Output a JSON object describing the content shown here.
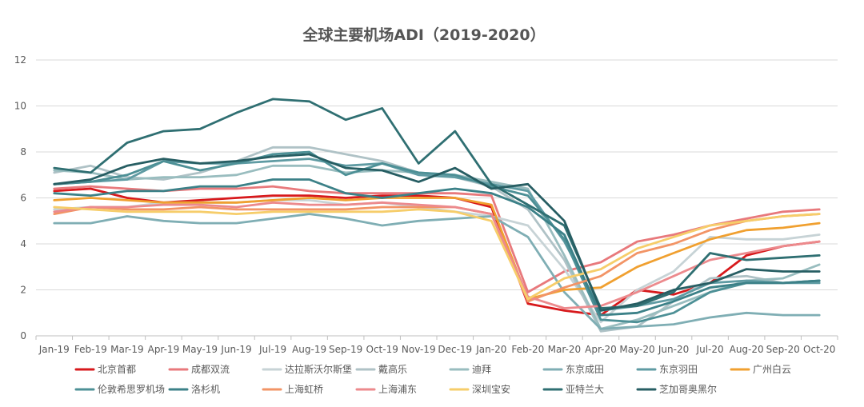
{
  "chart_data": {
    "type": "line",
    "title": "全球主要机场ADI（2019-2020）",
    "ylim": [
      0,
      12
    ],
    "yticks": [
      0,
      2,
      4,
      6,
      8,
      10,
      12
    ],
    "grid": "horizontal",
    "legend_position": "bottom",
    "categories": [
      "Jan-19",
      "Feb-19",
      "Mar-19",
      "Apr-19",
      "May-19",
      "Jun-19",
      "Jul-19",
      "Aug-19",
      "Sep-19",
      "Oct-19",
      "Nov-19",
      "Dec-19",
      "Jan-20",
      "Feb-20",
      "Mar-20",
      "Apr-20",
      "May-20",
      "Jun-20",
      "Jul-20",
      "Aug-20",
      "Sep-20",
      "Oct-20"
    ],
    "series": [
      {
        "name": "北京首都",
        "color": "#d7191c",
        "values": [
          6.3,
          6.4,
          6.0,
          5.8,
          5.9,
          6.0,
          6.1,
          6.1,
          6.0,
          6.1,
          6.1,
          6.0,
          5.6,
          1.4,
          1.1,
          0.9,
          2.0,
          1.8,
          2.3,
          3.5,
          3.9,
          4.1
        ]
      },
      {
        "name": "成都双流",
        "color": "#e8797c",
        "values": [
          6.4,
          6.5,
          6.4,
          6.3,
          6.4,
          6.4,
          6.5,
          6.3,
          6.2,
          6.2,
          6.2,
          6.2,
          6.1,
          1.9,
          2.8,
          3.2,
          4.1,
          4.4,
          4.8,
          5.1,
          5.4,
          5.5
        ]
      },
      {
        "name": "达拉斯沃尔斯堡",
        "color": "#c7d3d6",
        "values": [
          5.5,
          5.6,
          5.6,
          5.8,
          5.8,
          5.8,
          5.9,
          5.9,
          5.7,
          5.8,
          5.6,
          5.4,
          5.2,
          4.8,
          2.9,
          0.6,
          2.0,
          2.8,
          4.3,
          4.2,
          4.2,
          4.4
        ]
      },
      {
        "name": "戴高乐",
        "color": "#afc2c6",
        "values": [
          7.1,
          7.4,
          6.9,
          6.8,
          7.1,
          7.6,
          8.2,
          8.2,
          7.9,
          7.6,
          7.1,
          6.9,
          6.5,
          5.5,
          3.3,
          0.2,
          0.4,
          1.5,
          2.5,
          2.6,
          2.3,
          2.4
        ]
      },
      {
        "name": "迪拜",
        "color": "#99bdbf",
        "values": [
          7.2,
          7.1,
          6.8,
          6.9,
          6.9,
          7.0,
          7.4,
          7.4,
          7.1,
          7.2,
          7.1,
          7.0,
          6.7,
          6.4,
          3.5,
          0.3,
          0.7,
          1.3,
          1.9,
          2.4,
          2.5,
          3.1
        ]
      },
      {
        "name": "东京成田",
        "color": "#7faeb4",
        "values": [
          4.9,
          4.9,
          5.2,
          5.0,
          4.9,
          4.9,
          5.1,
          5.3,
          5.1,
          4.8,
          5.0,
          5.1,
          5.2,
          4.3,
          1.9,
          0.3,
          0.4,
          0.5,
          0.8,
          1.0,
          0.9,
          0.9
        ]
      },
      {
        "name": "东京羽田",
        "color": "#5f9ba3",
        "values": [
          6.6,
          6.7,
          6.8,
          7.6,
          7.5,
          7.5,
          7.6,
          7.7,
          7.4,
          7.5,
          7.0,
          6.9,
          6.6,
          6.3,
          4.1,
          1.1,
          1.3,
          1.6,
          2.3,
          2.4,
          2.3,
          2.3
        ]
      },
      {
        "name": "广州白云",
        "color": "#f0a030",
        "values": [
          5.9,
          6.0,
          5.9,
          5.8,
          5.8,
          5.8,
          5.9,
          6.0,
          5.9,
          6.0,
          6.0,
          6.0,
          5.7,
          1.6,
          2.0,
          2.1,
          3.0,
          3.6,
          4.2,
          4.6,
          4.7,
          4.9
        ]
      },
      {
        "name": "伦敦希思罗机场",
        "color": "#4d9096",
        "values": [
          6.6,
          6.7,
          7.0,
          7.6,
          7.2,
          7.5,
          7.9,
          8.0,
          7.0,
          7.5,
          7.1,
          7.0,
          6.5,
          6.1,
          4.2,
          0.7,
          0.6,
          1.0,
          1.9,
          2.3,
          2.3,
          2.4
        ]
      },
      {
        "name": "洛杉机",
        "color": "#3c8188",
        "values": [
          6.2,
          6.1,
          6.3,
          6.3,
          6.5,
          6.5,
          6.8,
          6.8,
          6.2,
          6.0,
          6.2,
          6.4,
          6.2,
          5.6,
          4.4,
          0.9,
          1.0,
          1.5,
          2.1,
          2.3,
          2.3,
          2.4
        ]
      },
      {
        "name": "上海虹桥",
        "color": "#f29466",
        "values": [
          5.3,
          5.6,
          5.5,
          5.5,
          5.6,
          5.5,
          5.5,
          5.5,
          5.5,
          5.6,
          5.6,
          5.6,
          5.3,
          1.5,
          2.1,
          2.6,
          3.6,
          4.0,
          4.6,
          5.0,
          5.2,
          5.3
        ]
      },
      {
        "name": "上海浦东",
        "color": "#ec8a8d",
        "values": [
          5.4,
          5.6,
          5.6,
          5.7,
          5.7,
          5.6,
          5.8,
          5.7,
          5.7,
          5.8,
          5.7,
          5.6,
          5.3,
          1.7,
          1.2,
          1.3,
          1.9,
          2.6,
          3.3,
          3.6,
          3.9,
          4.1
        ]
      },
      {
        "name": "深圳宝安",
        "color": "#f6cd6a",
        "values": [
          5.6,
          5.5,
          5.4,
          5.4,
          5.4,
          5.3,
          5.4,
          5.4,
          5.4,
          5.4,
          5.5,
          5.4,
          5.0,
          1.6,
          2.5,
          2.9,
          3.8,
          4.3,
          4.8,
          5.0,
          5.2,
          5.3
        ]
      },
      {
        "name": "亚特兰大",
        "color": "#2f6f72",
        "values": [
          7.3,
          7.1,
          8.4,
          8.9,
          9.0,
          9.7,
          10.3,
          10.2,
          9.4,
          9.9,
          7.5,
          8.9,
          6.6,
          5.7,
          4.8,
          1.2,
          1.3,
          1.9,
          3.6,
          3.3,
          3.4,
          3.5
        ]
      },
      {
        "name": "芝加哥奥黑尔",
        "color": "#275e63",
        "values": [
          6.6,
          6.8,
          7.4,
          7.7,
          7.5,
          7.6,
          7.8,
          7.9,
          7.3,
          7.2,
          6.7,
          7.3,
          6.4,
          6.6,
          5.0,
          1.1,
          1.4,
          2.0,
          2.3,
          2.9,
          2.8,
          2.8
        ]
      }
    ]
  }
}
